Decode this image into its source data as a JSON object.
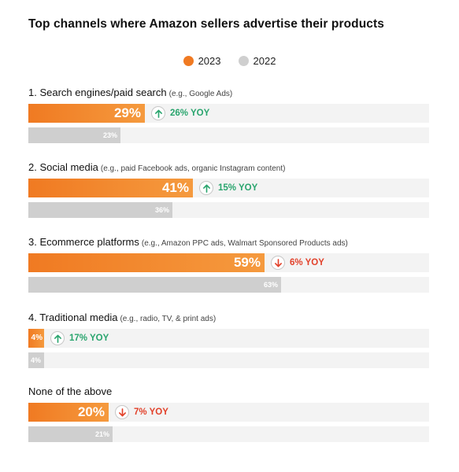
{
  "title": "Top channels where Amazon sellers advertise their products",
  "colors": {
    "y2023": "#f07a22",
    "y2022": "#cfcfcf",
    "up": "#2aa56e",
    "down": "#e2412a",
    "track": "#f3f3f3"
  },
  "chart_data": {
    "type": "bar",
    "title": "Top channels where Amazon sellers advertise their products",
    "series": [
      {
        "name": "2023",
        "values": [
          29,
          41,
          59,
          4,
          20
        ]
      },
      {
        "name": "2022",
        "values": [
          23,
          36,
          63,
          4,
          21
        ]
      }
    ],
    "categories": [
      "1. Search engines/paid search",
      "2. Social media",
      "3. Ecommerce platforms",
      "4. Traditional media",
      "None of the above"
    ],
    "examples": [
      "(e.g., Google Ads)",
      "(e.g., paid Facebook ads, organic Instagram content)",
      "(e.g., Amazon PPC ads, Walmart Sponsored Products ads)",
      "(e.g., radio, TV, & print ads)",
      ""
    ],
    "labels_2023": [
      "29%",
      "41%",
      "59%",
      "4%",
      "20%"
    ],
    "labels_2022": [
      "23%",
      "36%",
      "63%",
      "4%",
      "21%"
    ],
    "yoy": [
      {
        "direction": "up",
        "text": "26% YOY"
      },
      {
        "direction": "up",
        "text": "15% YOY"
      },
      {
        "direction": "down",
        "text": "6% YOY"
      },
      {
        "direction": "up",
        "text": "17% YOY"
      },
      {
        "direction": "down",
        "text": "7% YOY"
      }
    ],
    "xlim": [
      0,
      100
    ],
    "orientation": "horizontal",
    "legend_position": "top-center",
    "grid": false
  }
}
